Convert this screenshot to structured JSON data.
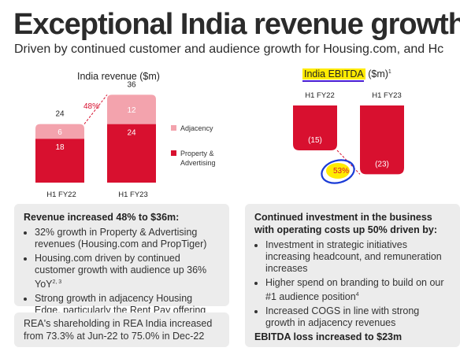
{
  "header": {
    "title": "Exceptional India revenue growth",
    "subtitle": "Driven by continued customer and audience growth for Housing.com, and Hc"
  },
  "chart_data": [
    {
      "type": "bar",
      "stacked": true,
      "title": "India revenue ($m)",
      "categories": [
        "H1 FY22",
        "H1 FY23"
      ],
      "series": [
        {
          "name": "Property & Advertising",
          "values": [
            18,
            24
          ],
          "color": "#d8102f"
        },
        {
          "name": "Adjacency",
          "values": [
            6,
            12
          ],
          "color": "#f3a3ad"
        }
      ],
      "totals": [
        24,
        36
      ],
      "annotations": [
        "48%"
      ],
      "legend": "right"
    },
    {
      "type": "bar",
      "title": "India EBITDA ($m)",
      "title_highlight": "India EBITDA",
      "title_rest": " ($m)",
      "title_sup": "1",
      "categories": [
        "H1 FY22",
        "H1 FY23"
      ],
      "values": [
        -15,
        -23
      ],
      "value_labels": [
        "(15)",
        "(23)"
      ],
      "annotations": [
        "53%"
      ],
      "color": "#d8102f"
    }
  ],
  "legend": {
    "adjacency": "Adjacency",
    "property_line1": "Property &",
    "property_line2": "Advertising"
  },
  "box_revenue": {
    "heading": "Revenue increased 48% to $36m:",
    "b1": "32% growth in Property & Advertising revenues (Housing.com and PropTiger)",
    "b2": "Housing.com driven by continued customer growth with audience up 36% YoY",
    "b2_sup": "2, 3",
    "b3": "Strong growth in adjacency Housing Edge, particularly the Rent Pay offering"
  },
  "box_share": {
    "text": "REA's shareholding in REA India increased from 73.3% at Jun-22 to 75.0% in Dec-22"
  },
  "box_invest": {
    "heading": "Continued investment in the business with operating costs up 50% driven by:",
    "b1": "Investment in strategic initiatives increasing headcount, and remuneration increases",
    "b2": "Higher spend on branding to build on our #1 audience position",
    "b2_sup": "4",
    "b3": "Increased COGS in line with strong growth in adjacency revenues",
    "foot": "EBITDA loss increased to $23m"
  }
}
